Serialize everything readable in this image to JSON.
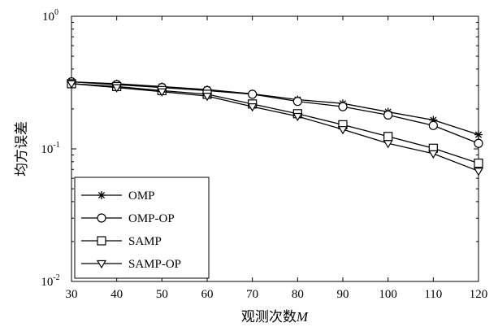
{
  "chart_data": {
    "type": "line",
    "title": "",
    "xlabel": "观测次数",
    "xlabel_var": "M",
    "ylabel": "均方误差",
    "x": [
      30,
      40,
      50,
      60,
      70,
      80,
      90,
      100,
      110,
      120
    ],
    "xlim": [
      30,
      120
    ],
    "ylim": [
      0.01,
      1
    ],
    "yscale": "log",
    "grid": false,
    "legend_position": "lower-left",
    "x_tick_labels": [
      "30",
      "40",
      "50",
      "60",
      "70",
      "80",
      "90",
      "100",
      "110",
      "120"
    ],
    "y_tick_labels": [
      {
        "base": "10",
        "exp": "0"
      },
      {
        "base": "10",
        "exp": "-1"
      },
      {
        "base": "10",
        "exp": "-2"
      }
    ],
    "series": [
      {
        "name": "OMP",
        "marker": "asterisk",
        "values": [
          0.32,
          0.31,
          0.295,
          0.28,
          0.26,
          0.235,
          0.22,
          0.19,
          0.165,
          0.128
        ]
      },
      {
        "name": "OMP-OP",
        "marker": "circle",
        "values": [
          0.32,
          0.305,
          0.29,
          0.275,
          0.258,
          0.228,
          0.208,
          0.18,
          0.15,
          0.11
        ]
      },
      {
        "name": "SAMP",
        "marker": "square",
        "values": [
          0.31,
          0.295,
          0.275,
          0.258,
          0.218,
          0.184,
          0.152,
          0.124,
          0.101,
          0.078
        ]
      },
      {
        "name": "SAMP-OP",
        "marker": "triangle-down",
        "values": [
          0.31,
          0.29,
          0.27,
          0.25,
          0.208,
          0.176,
          0.14,
          0.11,
          0.092,
          0.068
        ]
      }
    ]
  }
}
